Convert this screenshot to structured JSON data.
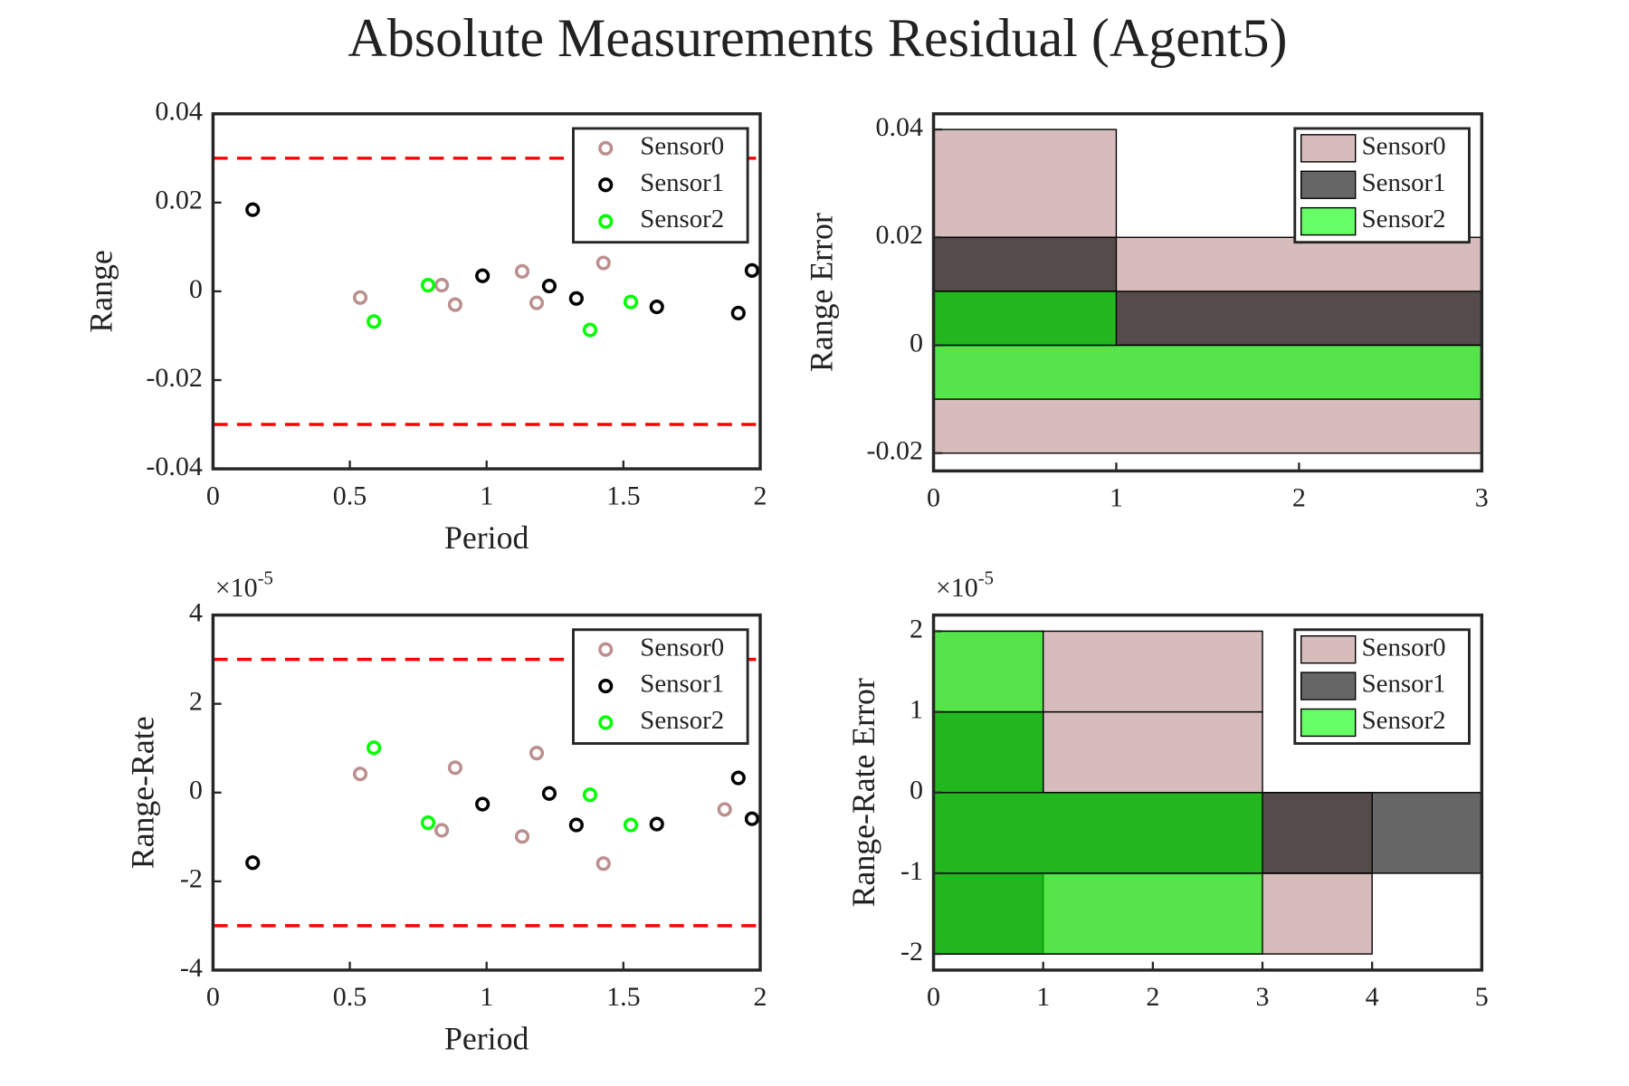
{
  "title": "Absolute Measurements Residual (Agent5)",
  "chart_data": [
    {
      "type": "scatter",
      "xlabel": "Period",
      "ylabel": "Range",
      "xlim": [
        0,
        2
      ],
      "xticks": [
        0,
        0.5,
        1,
        1.5,
        2
      ],
      "ylim": [
        -0.04,
        0.04
      ],
      "yticks": [
        -0.04,
        -0.02,
        0,
        0.02,
        0.04
      ],
      "hlines": [
        0.03,
        -0.03
      ],
      "hline_color": "#ff0000",
      "legend": "upper right",
      "series": [
        {
          "name": "Sensor0",
          "color": "#bc8f8f",
          "x": [
            0.538,
            0.836,
            0.885,
            1.13,
            1.183,
            1.427
          ],
          "values": [
            -0.0014,
            0.0014,
            -0.003,
            0.0045,
            -0.0026,
            0.0064
          ]
        },
        {
          "name": "Sensor1",
          "color": "#000000",
          "x": [
            0.145,
            0.985,
            1.229,
            1.328,
            1.622,
            1.92,
            1.97
          ],
          "values": [
            0.0184,
            0.0035,
            0.0012,
            -0.0016,
            -0.0035,
            -0.0049,
            0.0047
          ]
        },
        {
          "name": "Sensor2",
          "color": "#00ff00",
          "x": [
            0.588,
            0.786,
            1.378,
            1.527
          ],
          "values": [
            -0.0068,
            0.0014,
            -0.0087,
            -0.0024
          ]
        }
      ]
    },
    {
      "type": "histogram",
      "orientation": "horizontal",
      "ylabel": "Range Error",
      "xlim": [
        0,
        3
      ],
      "xticks": [
        0,
        1,
        2,
        3
      ],
      "ylim": [
        -0.0233,
        0.0429
      ],
      "yticks": [
        -0.02,
        0,
        0.02,
        0.04
      ],
      "opacity": 0.6,
      "legend": "upper right",
      "series": [
        {
          "name": "Sensor0",
          "color": "#bc8f8f",
          "bins": [
            -0.02,
            0,
            0.02,
            0.04
          ],
          "values": [
            3,
            3,
            1
          ]
        },
        {
          "name": "Sensor1",
          "color": "#000000",
          "bins": [
            0,
            0.01,
            0.02
          ],
          "values": [
            3,
            1
          ]
        },
        {
          "name": "Sensor2",
          "color": "#00ff00",
          "bins": [
            -0.01,
            0,
            0.01
          ],
          "values": [
            3,
            1
          ]
        }
      ]
    },
    {
      "type": "scatter",
      "xlabel": "Period",
      "ylabel": "Range-Rate",
      "y_multiplier": {
        "base": "×10",
        "exponent": "-5"
      },
      "xlim": [
        0,
        2
      ],
      "xticks": [
        0,
        0.5,
        1,
        1.5,
        2
      ],
      "ylim": [
        -4,
        4
      ],
      "yticks": [
        -4,
        -2,
        0,
        2,
        4
      ],
      "hlines": [
        3,
        -3
      ],
      "hline_color": "#ff0000",
      "legend": "upper right",
      "series": [
        {
          "name": "Sensor0",
          "color": "#bc8f8f",
          "x": [
            0.538,
            0.836,
            0.885,
            1.13,
            1.183,
            1.427,
            1.87
          ],
          "values": [
            0.42,
            -0.85,
            0.56,
            -0.99,
            0.89,
            -1.6,
            -0.38
          ]
        },
        {
          "name": "Sensor1",
          "color": "#000000",
          "x": [
            0.145,
            0.985,
            1.229,
            1.328,
            1.622,
            1.92,
            1.97
          ],
          "values": [
            -1.58,
            -0.26,
            -0.02,
            -0.73,
            -0.71,
            0.33,
            -0.59
          ]
        },
        {
          "name": "Sensor2",
          "color": "#00ff00",
          "x": [
            0.588,
            0.786,
            1.378,
            1.527
          ],
          "values": [
            1.01,
            -0.68,
            -0.05,
            -0.73
          ]
        }
      ]
    },
    {
      "type": "histogram",
      "orientation": "horizontal",
      "ylabel": "Range-Rate Error",
      "y_multiplier": {
        "base": "×10",
        "exponent": "-5"
      },
      "xlim": [
        0,
        5
      ],
      "xticks": [
        0,
        1,
        2,
        3,
        4,
        5
      ],
      "ylim": [
        -2.2,
        2.2
      ],
      "yticks": [
        -2,
        -1,
        0,
        1,
        2
      ],
      "opacity": 0.6,
      "legend": "upper right",
      "series": [
        {
          "name": "Sensor0",
          "color": "#bc8f8f",
          "bins": [
            -2,
            -1,
            0,
            1,
            2
          ],
          "values": [
            4,
            4,
            3,
            3
          ]
        },
        {
          "name": "Sensor1",
          "color": "#000000",
          "bins": [
            -2,
            -1,
            0,
            1,
            2
          ],
          "values": [
            1,
            5,
            1,
            0
          ]
        },
        {
          "name": "Sensor2",
          "color": "#00ff00",
          "bins": [
            -2,
            -1,
            0,
            1,
            2
          ],
          "values": [
            3,
            3,
            1,
            1
          ]
        }
      ]
    }
  ]
}
